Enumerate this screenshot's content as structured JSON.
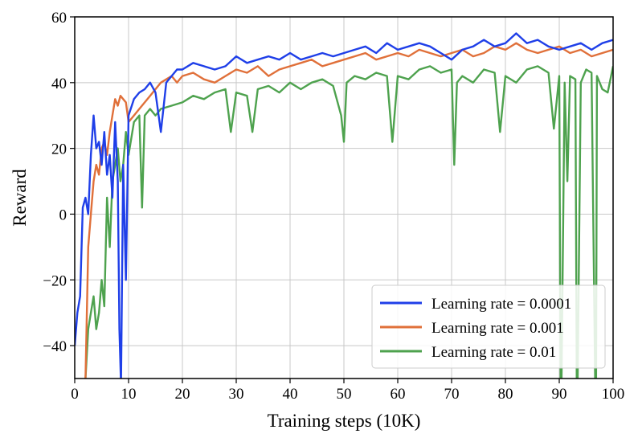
{
  "chart_data": {
    "type": "line",
    "title": "",
    "xlabel": "Training steps (10K)",
    "ylabel": "Reward",
    "xlim": [
      0,
      100
    ],
    "ylim": [
      -50,
      60
    ],
    "xticks": [
      0,
      10,
      20,
      30,
      40,
      50,
      60,
      70,
      80,
      90,
      100
    ],
    "yticks": [
      -40,
      -20,
      0,
      20,
      40,
      60
    ],
    "grid": true,
    "legend_position": "bottom-right",
    "series": [
      {
        "name": "Learning rate = 0.0001",
        "color": "#1f3fe8",
        "x": [
          0,
          0.5,
          1,
          1.5,
          2,
          2.5,
          3,
          3.5,
          4,
          4.5,
          5,
          5.5,
          6,
          6.5,
          7,
          7.5,
          8,
          8.3,
          8.6,
          9,
          9.5,
          10,
          11,
          12,
          13,
          14,
          15,
          16,
          17,
          18,
          19,
          20,
          22,
          24,
          26,
          28,
          30,
          32,
          34,
          36,
          38,
          40,
          42,
          44,
          46,
          48,
          50,
          52,
          54,
          56,
          58,
          60,
          62,
          64,
          66,
          68,
          70,
          72,
          74,
          76,
          78,
          80,
          82,
          84,
          86,
          88,
          90,
          92,
          94,
          96,
          98,
          100
        ],
        "y": [
          -40,
          -30,
          -25,
          2,
          5,
          0,
          18,
          30,
          20,
          22,
          15,
          25,
          12,
          18,
          5,
          28,
          10,
          -35,
          -52,
          15,
          -20,
          30,
          35,
          37,
          38,
          40,
          37,
          25,
          40,
          42,
          44,
          44,
          46,
          45,
          44,
          45,
          48,
          46,
          47,
          48,
          47,
          49,
          47,
          48,
          49,
          48,
          49,
          50,
          51,
          49,
          52,
          50,
          51,
          52,
          51,
          49,
          47,
          50,
          51,
          53,
          51,
          52,
          55,
          52,
          53,
          51,
          50,
          51,
          52,
          50,
          52,
          53
        ]
      },
      {
        "name": "Learning rate = 0.001",
        "color": "#e0703a",
        "x": [
          0,
          0.5,
          1,
          1.5,
          2,
          2.5,
          3,
          3.5,
          4,
          4.5,
          5,
          5.5,
          6,
          6.5,
          7,
          7.5,
          8,
          8.5,
          9,
          9.5,
          10,
          11,
          12,
          13,
          14,
          15,
          16,
          17,
          18,
          19,
          20,
          22,
          24,
          26,
          28,
          30,
          32,
          34,
          36,
          38,
          40,
          42,
          44,
          46,
          48,
          50,
          52,
          54,
          56,
          58,
          60,
          62,
          64,
          66,
          68,
          70,
          72,
          74,
          76,
          78,
          80,
          82,
          84,
          86,
          88,
          90,
          92,
          94,
          96,
          98,
          100
        ],
        "y": [
          -60,
          -60,
          -60,
          -60,
          -50,
          -10,
          0,
          10,
          15,
          12,
          20,
          22,
          18,
          25,
          30,
          35,
          33,
          36,
          35,
          34,
          28,
          30,
          32,
          34,
          36,
          38,
          40,
          41,
          42,
          40,
          42,
          43,
          41,
          40,
          42,
          44,
          43,
          45,
          42,
          44,
          45,
          46,
          47,
          45,
          46,
          47,
          48,
          49,
          47,
          48,
          49,
          48,
          50,
          49,
          48,
          49,
          50,
          48,
          49,
          51,
          50,
          52,
          50,
          49,
          50,
          51,
          49,
          50,
          48,
          49,
          50
        ]
      },
      {
        "name": "Learning rate = 0.01",
        "color": "#4ea24e",
        "x": [
          0,
          1,
          1.5,
          2,
          2.5,
          3,
          3.5,
          4,
          4.5,
          5,
          5.5,
          6,
          6.5,
          7,
          7.5,
          8,
          8.5,
          9,
          9.5,
          10,
          11,
          12,
          12.5,
          13,
          14,
          15,
          16,
          18,
          20,
          22,
          24,
          26,
          28,
          29,
          30,
          32,
          33,
          34,
          36,
          38,
          40,
          42,
          44,
          46,
          48,
          49.5,
          50,
          50.5,
          52,
          54,
          56,
          58,
          59,
          60,
          62,
          64,
          66,
          68,
          70,
          70.5,
          71,
          72,
          74,
          76,
          78,
          79,
          80,
          82,
          84,
          86,
          88,
          89,
          90,
          90.3,
          91,
          91.5,
          92,
          93,
          93.3,
          94,
          95,
          96,
          96.8,
          97,
          97.5,
          98,
          99,
          100
        ],
        "y": [
          -60,
          -60,
          -60,
          -50,
          -35,
          -30,
          -25,
          -35,
          -30,
          -20,
          -28,
          5,
          -10,
          10,
          15,
          20,
          10,
          15,
          25,
          18,
          28,
          30,
          2,
          30,
          32,
          30,
          32,
          33,
          34,
          36,
          35,
          37,
          38,
          25,
          37,
          36,
          25,
          38,
          39,
          37,
          40,
          38,
          40,
          41,
          39,
          30,
          22,
          40,
          42,
          41,
          43,
          42,
          22,
          42,
          41,
          44,
          45,
          43,
          44,
          15,
          40,
          42,
          40,
          44,
          43,
          25,
          42,
          40,
          44,
          45,
          43,
          26,
          42,
          -70,
          40,
          10,
          42,
          41,
          -70,
          40,
          44,
          43,
          -70,
          42,
          40,
          38,
          37,
          45
        ]
      }
    ]
  }
}
